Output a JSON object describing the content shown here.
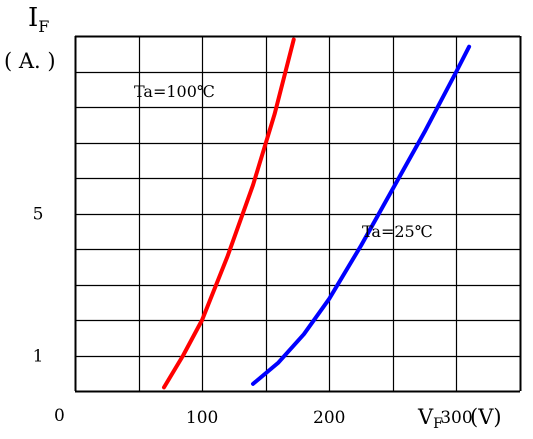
{
  "chart_data": {
    "type": "line",
    "y_axis_symbol": "I",
    "y_axis_subscript": "F",
    "y_axis_unit": "( A. )",
    "x_axis_symbol": "V",
    "x_axis_subscript": "F",
    "x_axis_unit": "(V)",
    "xlim": [
      0,
      350
    ],
    "ylim": [
      0,
      10
    ],
    "x_ticks": [
      {
        "value": 100,
        "label": "100"
      },
      {
        "value": 200,
        "label": "200"
      },
      {
        "value": 300,
        "label": "300"
      }
    ],
    "y_ticks": [
      {
        "value": 1,
        "label": "1"
      },
      {
        "value": 5,
        "label": "5"
      }
    ],
    "origin_label": "0",
    "grid": true,
    "grid_step": {
      "x": 50,
      "y": 1
    },
    "series": [
      {
        "name": "Ta=100℃",
        "color": "#ff0000",
        "x": [
          70,
          85,
          100,
          120,
          140,
          157,
          172
        ],
        "y": [
          0.1,
          1.0,
          2.0,
          3.8,
          5.8,
          7.8,
          9.9
        ]
      },
      {
        "name": "Ta=25℃",
        "color": "#0000ff",
        "x": [
          140,
          160,
          180,
          200,
          225,
          250,
          275,
          300,
          310
        ],
        "y": [
          0.2,
          0.8,
          1.6,
          2.6,
          4.1,
          5.7,
          7.3,
          9.0,
          9.7
        ]
      }
    ]
  }
}
